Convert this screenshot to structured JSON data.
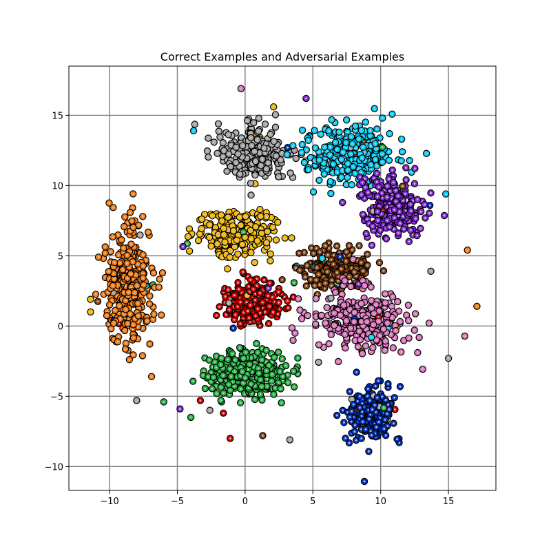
{
  "chart_data": {
    "type": "scatter",
    "title": "Correct Examples and Adversarial Examples",
    "xlabel": "",
    "ylabel": "",
    "xlim": [
      -13,
      18.5
    ],
    "ylim": [
      -11.7,
      18.5
    ],
    "xticks": [
      -10,
      -5,
      0,
      5,
      10,
      15
    ],
    "yticks": [
      -10,
      -5,
      0,
      5,
      10,
      15
    ],
    "xtick_labels": [
      "−10",
      "−5",
      "0",
      "5",
      "10",
      "15"
    ],
    "ytick_labels": [
      "−10",
      "−5",
      "0",
      "5",
      "10",
      "15"
    ],
    "grid": true,
    "legend": "none",
    "marker": "circle with black edge and gray center",
    "clusters": [
      {
        "color": "#ff7f0e",
        "center": [
          -8.6,
          3.0
        ],
        "spread": [
          1.5,
          3.3
        ],
        "count": 340
      },
      {
        "color": "#ffbf00",
        "center": [
          -0.8,
          6.6
        ],
        "spread": [
          2.3,
          1.3
        ],
        "count": 240
      },
      {
        "color": "#a9a9a9",
        "center": [
          0.9,
          12.4
        ],
        "spread": [
          2.2,
          1.5
        ],
        "count": 260
      },
      {
        "color": "#00d5ff",
        "center": [
          7.6,
          12.2
        ],
        "spread": [
          2.6,
          1.6
        ],
        "count": 280
      },
      {
        "color": "#8a2be2",
        "center": [
          10.8,
          8.5
        ],
        "spread": [
          1.9,
          1.8
        ],
        "count": 240
      },
      {
        "color": "#8b4513",
        "center": [
          6.8,
          4.0
        ],
        "spread": [
          2.1,
          1.2
        ],
        "count": 200
      },
      {
        "color": "#e00000",
        "center": [
          0.6,
          1.6
        ],
        "spread": [
          1.6,
          1.2
        ],
        "count": 220
      },
      {
        "color": "#e377c2",
        "center": [
          8.5,
          0.3
        ],
        "spread": [
          2.9,
          1.8
        ],
        "count": 280
      },
      {
        "color": "#22bb44",
        "center": [
          0.2,
          -3.4
        ],
        "spread": [
          2.4,
          1.3
        ],
        "count": 260
      },
      {
        "color": "#0033cc",
        "center": [
          9.3,
          -6.3
        ],
        "spread": [
          1.4,
          1.6
        ],
        "count": 260
      }
    ],
    "outliers": [
      {
        "x": -0.3,
        "y": 16.9,
        "color": "#e377c2"
      },
      {
        "x": 2.1,
        "y": 15.6,
        "color": "#ffbf00"
      },
      {
        "x": 4.5,
        "y": 16.2,
        "color": "#8a2be2"
      },
      {
        "x": -3.8,
        "y": 13.9,
        "color": "#00d5ff"
      },
      {
        "x": 16.4,
        "y": 5.4,
        "color": "#ff7f0e"
      },
      {
        "x": 17.1,
        "y": 1.4,
        "color": "#ff7f0e"
      },
      {
        "x": 15.0,
        "y": -2.3,
        "color": "#a9a9a9"
      },
      {
        "x": -11.4,
        "y": 1.9,
        "color": "#ffbf00"
      },
      {
        "x": -11.4,
        "y": 1.0,
        "color": "#ffbf00"
      },
      {
        "x": -8.0,
        "y": -5.3,
        "color": "#a9a9a9"
      },
      {
        "x": -6.0,
        "y": -5.4,
        "color": "#22bb44"
      },
      {
        "x": -4.8,
        "y": -5.9,
        "color": "#8a2be2"
      },
      {
        "x": -4.0,
        "y": -6.5,
        "color": "#22bb44"
      },
      {
        "x": -2.6,
        "y": -6.0,
        "color": "#a9a9a9"
      },
      {
        "x": -1.6,
        "y": -6.2,
        "color": "#e00000"
      },
      {
        "x": -1.1,
        "y": -8.0,
        "color": "#e00000"
      },
      {
        "x": 1.3,
        "y": -7.8,
        "color": "#8b4513"
      },
      {
        "x": 3.3,
        "y": -8.1,
        "color": "#a9a9a9"
      },
      {
        "x": 13.7,
        "y": 3.9,
        "color": "#a9a9a9"
      },
      {
        "x": -6.9,
        "y": -3.6,
        "color": "#ff7f0e"
      },
      {
        "x": -3.3,
        "y": -5.3,
        "color": "#e00000"
      },
      {
        "x": 14.8,
        "y": 9.4,
        "color": "#00d5ff"
      }
    ]
  }
}
